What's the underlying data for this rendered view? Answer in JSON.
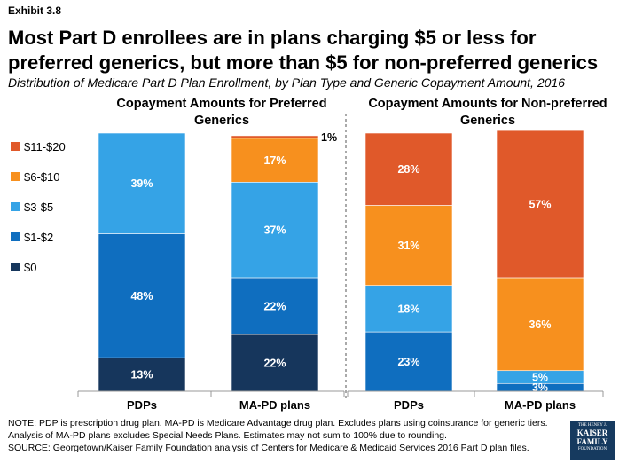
{
  "exhibit": "Exhibit 3.8",
  "title": "Most Part D enrollees are in plans charging $5 or less for preferred generics, but more than $5 for non-preferred generics",
  "subtitle": "Distribution of Medicare Part D Plan Enrollment, by Plan Type and Generic Copayment Amount, 2016",
  "colors": {
    "$0": "#16365c",
    "$1-$2": "#0f6ebf",
    "$3-$5": "#35a3e6",
    "$6-$10": "#f7901e",
    "$11-$20": "#e0592a"
  },
  "chart_data": {
    "type": "bar",
    "stacked": true,
    "legend_position": "left",
    "legend": [
      "$11-$20",
      "$6-$10",
      "$3-$5",
      "$1-$2",
      "$0"
    ],
    "groups": [
      {
        "title": "Copayment Amounts for Preferred Generics",
        "bars": [
          {
            "category": "PDPs",
            "segments": [
              {
                "series": "$0",
                "value": 13,
                "label": "13%"
              },
              {
                "series": "$1-$2",
                "value": 48,
                "label": "48%"
              },
              {
                "series": "$3-$5",
                "value": 39,
                "label": "39%"
              }
            ]
          },
          {
            "category": "MA-PD plans",
            "segments": [
              {
                "series": "$0",
                "value": 22,
                "label": "22%"
              },
              {
                "series": "$1-$2",
                "value": 22,
                "label": "22%"
              },
              {
                "series": "$3-$5",
                "value": 37,
                "label": "37%"
              },
              {
                "series": "$6-$10",
                "value": 17,
                "label": "17%"
              },
              {
                "series": "$11-$20",
                "value": 1,
                "label": "1%",
                "label_outside": true
              }
            ]
          }
        ]
      },
      {
        "title": "Copayment Amounts for Non-preferred Generics",
        "bars": [
          {
            "category": "PDPs",
            "segments": [
              {
                "series": "$1-$2",
                "value": 23,
                "label": "23%"
              },
              {
                "series": "$3-$5",
                "value": 18,
                "label": "18%"
              },
              {
                "series": "$6-$10",
                "value": 31,
                "label": "31%"
              },
              {
                "series": "$11-$20",
                "value": 28,
                "label": "28%"
              }
            ]
          },
          {
            "category": "MA-PD plans",
            "segments": [
              {
                "series": "$1-$2",
                "value": 3,
                "label": "3%"
              },
              {
                "series": "$3-$5",
                "value": 5,
                "label": "5%"
              },
              {
                "series": "$6-$10",
                "value": 36,
                "label": "36%"
              },
              {
                "series": "$11-$20",
                "value": 57,
                "label": "57%"
              }
            ]
          }
        ]
      }
    ]
  },
  "notes": [
    "NOTE: PDP is prescription drug plan. MA-PD is Medicare Advantage drug plan. Excludes plans using coinsurance for generic tiers.",
    "Analysis of MA-PD plans excludes Special Needs Plans. Estimates may not sum to 100% due to rounding.",
    "SOURCE: Georgetown/Kaiser Family Foundation analysis of Centers for Medicare & Medicaid Services 2016 Part D plan files."
  ],
  "logo": {
    "line1": "THE HENRY J.",
    "line2": "KAISER",
    "line3": "FAMILY",
    "line4": "FOUNDATION"
  }
}
